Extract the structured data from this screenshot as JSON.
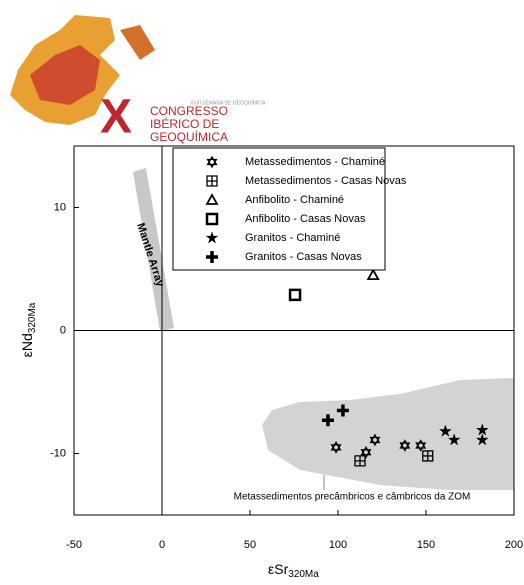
{
  "logo": {
    "small": "XVIII SEMANA DE GEOQUÍMICA",
    "numeral": "X",
    "line1": "CONGRESSO",
    "line2": "IBÉRICO DE",
    "line3": "GEOQUÍMICA"
  },
  "chart_data": {
    "type": "scatter",
    "xlabel": {
      "main": "εSr",
      "sub": "320Ma"
    },
    "ylabel": {
      "main": "εNd",
      "sub": "320Ma"
    },
    "xlim": [
      -50,
      200
    ],
    "xticks": [
      -50,
      0,
      50,
      100,
      150,
      200
    ],
    "ylim": [
      -15,
      15
    ],
    "yticks": [
      -10,
      0,
      10
    ],
    "zero_lines": true,
    "annotations": {
      "mantle": "Mantle Array",
      "field": "Metassedimentos precâmbricos e câmbricos da ZOM"
    },
    "series": [
      {
        "name": "Metassedimentos - Chaminé",
        "marker": "hexagram",
        "color": "#000000",
        "x": [
          98.9,
          115.9,
          121,
          138,
          147
        ],
        "values": [
          -9.5,
          -9.9,
          -8.9,
          -9.35,
          -9.35
        ]
      },
      {
        "name": "Metassedimentos - Casas Novas",
        "marker": "square-plus",
        "color": "#000000",
        "x": [
          112.5,
          151
        ],
        "values": [
          -10.6,
          -10.2
        ]
      },
      {
        "name": "Anfibolito - Chaminé",
        "marker": "triangle",
        "color": "#000000",
        "x": [
          120
        ],
        "values": [
          4.5
        ]
      },
      {
        "name": "Anfibolito - Casas Novas",
        "marker": "square",
        "color": "#000000",
        "x": [
          75.6
        ],
        "values": [
          2.9
        ]
      },
      {
        "name": "Granitos - Chaminé",
        "marker": "star",
        "color": "#000000",
        "x": [
          161,
          166,
          182,
          182
        ],
        "values": [
          -8.2,
          -8.9,
          -8.1,
          -8.9
        ]
      },
      {
        "name": "Granitos - Casas Novas",
        "marker": "cross",
        "color": "#000000",
        "x": [
          94.3,
          102.8
        ],
        "values": [
          -7.3,
          -6.5
        ]
      }
    ]
  }
}
